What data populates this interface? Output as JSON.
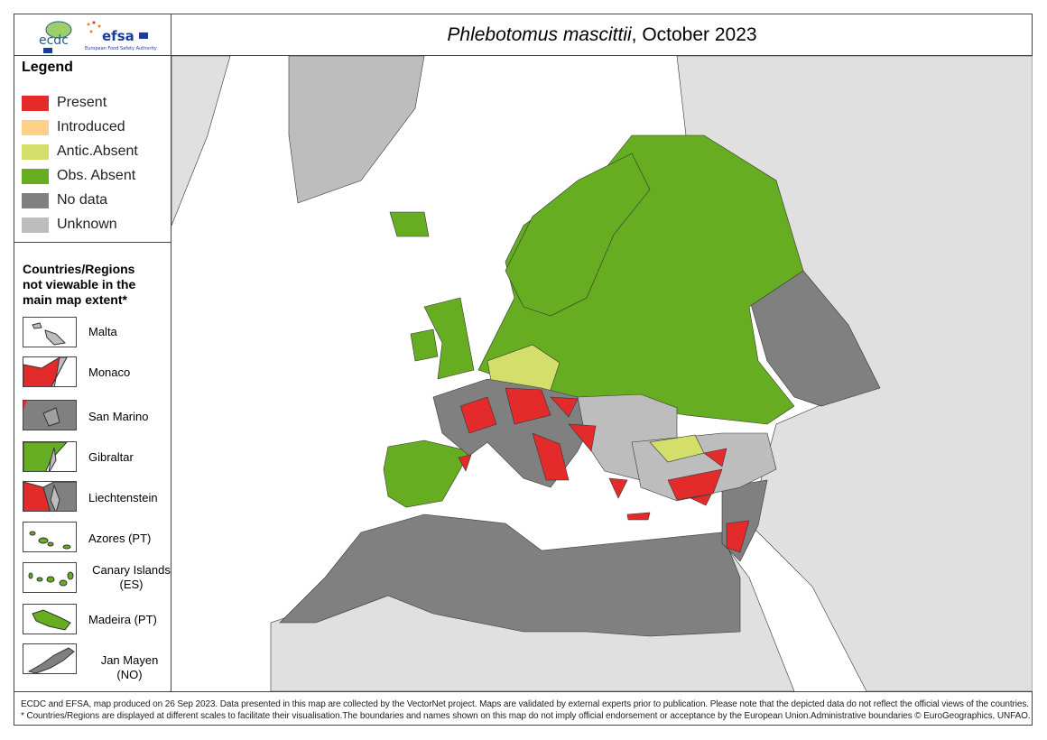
{
  "header": {
    "title_species": "Phlebotomus mascittii",
    "title_suffix": ", October 2023",
    "logos": {
      "ecdc": "ecdc",
      "efsa": "efsa",
      "efsa_sub": "European Food Safety Authority"
    }
  },
  "legend": {
    "title": "Legend",
    "items": [
      {
        "label": "Present",
        "color": "#e32b2b"
      },
      {
        "label": "Introduced",
        "color": "#fdd185"
      },
      {
        "label": "Antic.Absent",
        "color": "#d4de6a"
      },
      {
        "label": "Obs. Absent",
        "color": "#66ad22"
      },
      {
        "label": "No data",
        "color": "#808080"
      },
      {
        "label": "Unknown",
        "color": "#bdbdbd"
      }
    ]
  },
  "regions": {
    "title": "Countries/Regions not viewable in the main map extent*",
    "items": [
      {
        "label": "Malta",
        "status": "Unknown"
      },
      {
        "label": "Monaco",
        "status": "Present"
      },
      {
        "label": "San Marino",
        "status": "No data"
      },
      {
        "label": "Gibraltar",
        "status": "Obs. Absent"
      },
      {
        "label": "Liechtenstein",
        "status": "Present"
      },
      {
        "label": "Azores (PT)",
        "status": "Obs. Absent"
      },
      {
        "label": "Canary Islands (ES)",
        "status": "Obs. Absent"
      },
      {
        "label": "Madeira (PT)",
        "status": "Obs. Absent"
      },
      {
        "label": "Jan Mayen (NO)",
        "status": "No data"
      }
    ]
  },
  "footer": {
    "line1": "ECDC and EFSA, map produced on 26 Sep 2023. Data presented in this map are collected by the VectorNet project. Maps are validated by external experts prior to publication. Please note that the depicted data do not reflect the official views of the countries.",
    "line2": "* Countries/Regions are displayed at different scales to facilitate their visualisation.The boundaries and names shown on this map do not imply official endorsement or acceptance by the European Union.Administrative boundaries © EuroGeographics, UNFAO."
  }
}
